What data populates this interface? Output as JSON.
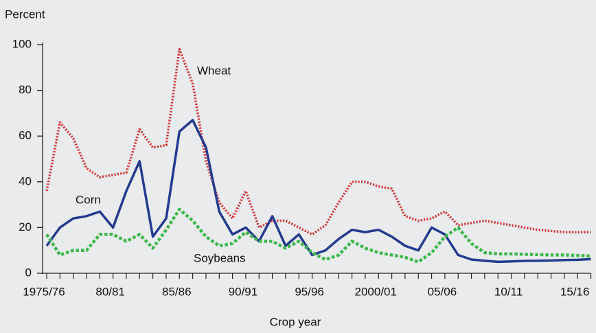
{
  "chart_data": {
    "type": "line",
    "y_label": "Percent",
    "x_label": "Crop year",
    "categories": [
      "1975/76",
      null,
      null,
      null,
      null,
      "80/81",
      null,
      null,
      null,
      null,
      "85/86",
      null,
      null,
      null,
      null,
      "90/91",
      null,
      null,
      null,
      null,
      "95/96",
      null,
      null,
      null,
      null,
      "2000/01",
      null,
      null,
      null,
      null,
      "05/06",
      null,
      null,
      null,
      null,
      "10/11",
      null,
      null,
      null,
      null,
      "15/16",
      null
    ],
    "ylim": [
      0,
      100
    ],
    "yticks": [
      0,
      20,
      40,
      60,
      80,
      100
    ],
    "grid": false,
    "series": [
      {
        "name": "Wheat",
        "color": "#d8373a",
        "style": "dotted",
        "values": [
          36,
          66,
          59,
          46,
          42,
          43,
          44,
          63,
          55,
          56,
          98,
          83,
          49,
          31,
          24,
          36,
          20,
          23,
          23,
          20,
          17,
          21,
          31,
          40,
          40,
          38,
          37,
          25,
          23,
          24,
          27,
          21,
          22,
          23,
          22,
          21,
          20,
          19,
          18.5,
          18,
          18,
          18
        ]
      },
      {
        "name": "Corn",
        "color": "#233a8f",
        "style": "solid",
        "values": [
          12,
          20,
          24,
          25,
          27,
          20,
          36,
          49,
          16,
          24,
          62,
          67,
          55,
          27,
          17,
          20,
          14,
          25,
          12,
          17,
          8,
          10,
          15,
          19,
          18,
          19,
          16,
          12,
          10,
          20,
          17,
          8,
          6,
          5.5,
          5,
          5.2,
          5.4,
          5.5,
          5.6,
          5.8,
          5.9,
          6.2
        ]
      },
      {
        "name": "Soybeans",
        "color": "#3cb84a",
        "style": "dashed",
        "values": [
          17,
          8,
          10,
          10,
          17,
          17,
          14,
          17,
          11,
          19,
          28,
          23,
          16,
          12,
          13,
          18,
          14,
          14,
          11,
          14,
          9,
          6,
          8,
          14,
          11,
          9,
          8,
          7,
          5,
          9,
          16,
          20,
          13,
          9,
          8.5,
          8.5,
          8.3,
          8.2,
          8,
          8,
          7.8,
          7.5
        ]
      }
    ]
  }
}
